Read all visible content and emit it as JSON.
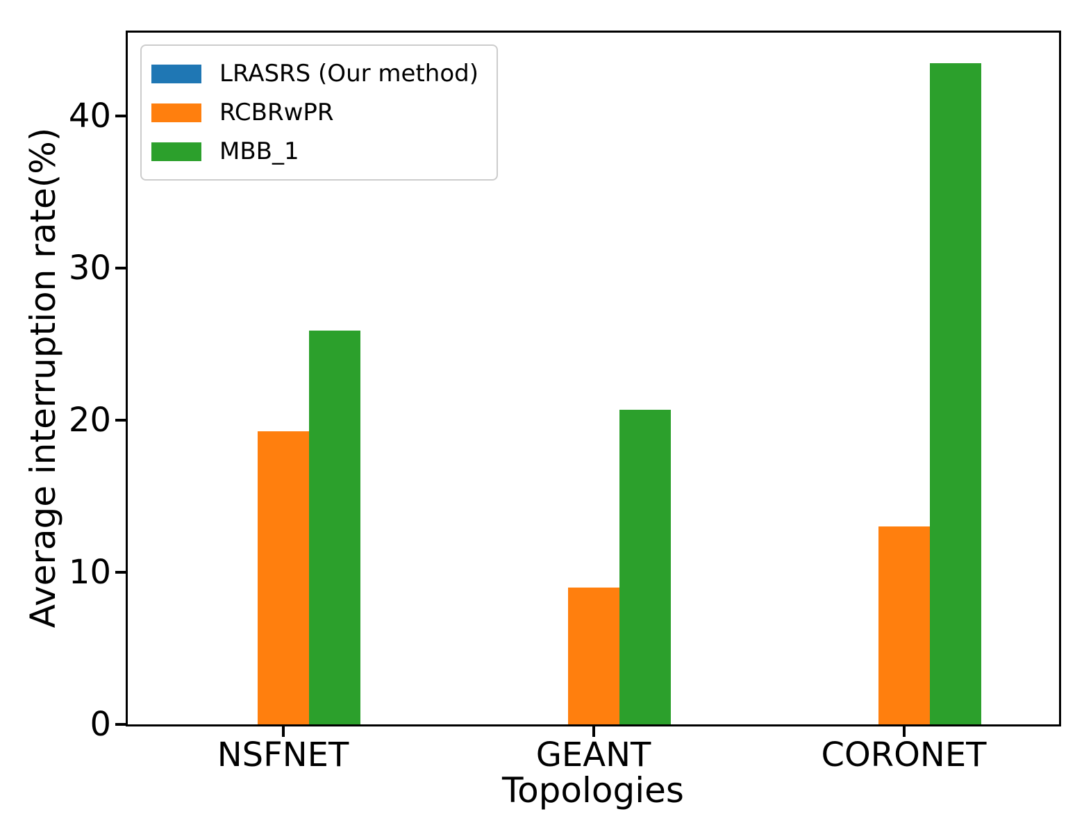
{
  "chart_data": {
    "type": "bar",
    "title": "",
    "xlabel": "Topologies",
    "ylabel": "Average interruption rate(%)",
    "categories": [
      "NSFNET",
      "GEANT",
      "CORONET"
    ],
    "series": [
      {
        "name": "LRASRS (Our method)",
        "color": "#1f77b4",
        "values": [
          0,
          0,
          0
        ]
      },
      {
        "name": "RCBRwPR",
        "color": "#ff7f0e",
        "values": [
          19.3,
          9.0,
          13.0
        ]
      },
      {
        "name": "MBB_1",
        "color": "#2ca02c",
        "values": [
          25.9,
          20.7,
          43.5
        ]
      }
    ],
    "ylim": [
      0,
      45.5
    ],
    "yticks": [
      0,
      10,
      20,
      30,
      40
    ],
    "legend_position": "upper left",
    "grid": false,
    "spine_color": "#000000",
    "background_color": "#ffffff"
  }
}
